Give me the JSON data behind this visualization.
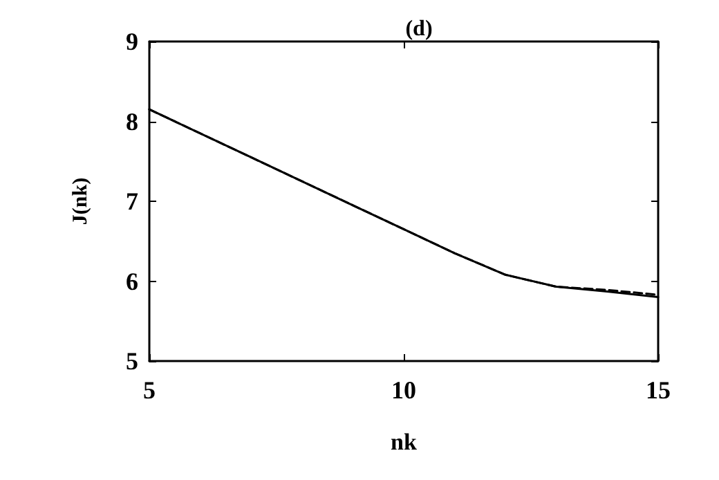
{
  "chart_data": {
    "type": "line",
    "title": "(d)",
    "xlabel": "nk",
    "ylabel": "J(nk)",
    "xlim": [
      5,
      15
    ],
    "xticks": [
      5,
      10,
      15
    ],
    "ylim": [
      5,
      9
    ],
    "yticks": [
      5,
      6,
      7,
      8,
      9
    ],
    "grid": false,
    "marker": "none",
    "x": [
      5,
      7,
      9,
      10,
      11,
      12,
      13,
      14,
      15
    ],
    "series": [
      {
        "color": "#000000",
        "line_style": "solid",
        "values": [
          8.15,
          7.55,
          6.95,
          6.65,
          6.35,
          6.08,
          5.93,
          5.87,
          5.8
        ]
      },
      {
        "color": "#000000",
        "line_style": "dashed",
        "values": [
          8.15,
          7.55,
          6.95,
          6.65,
          6.35,
          6.08,
          5.93,
          5.89,
          5.83
        ]
      }
    ]
  }
}
